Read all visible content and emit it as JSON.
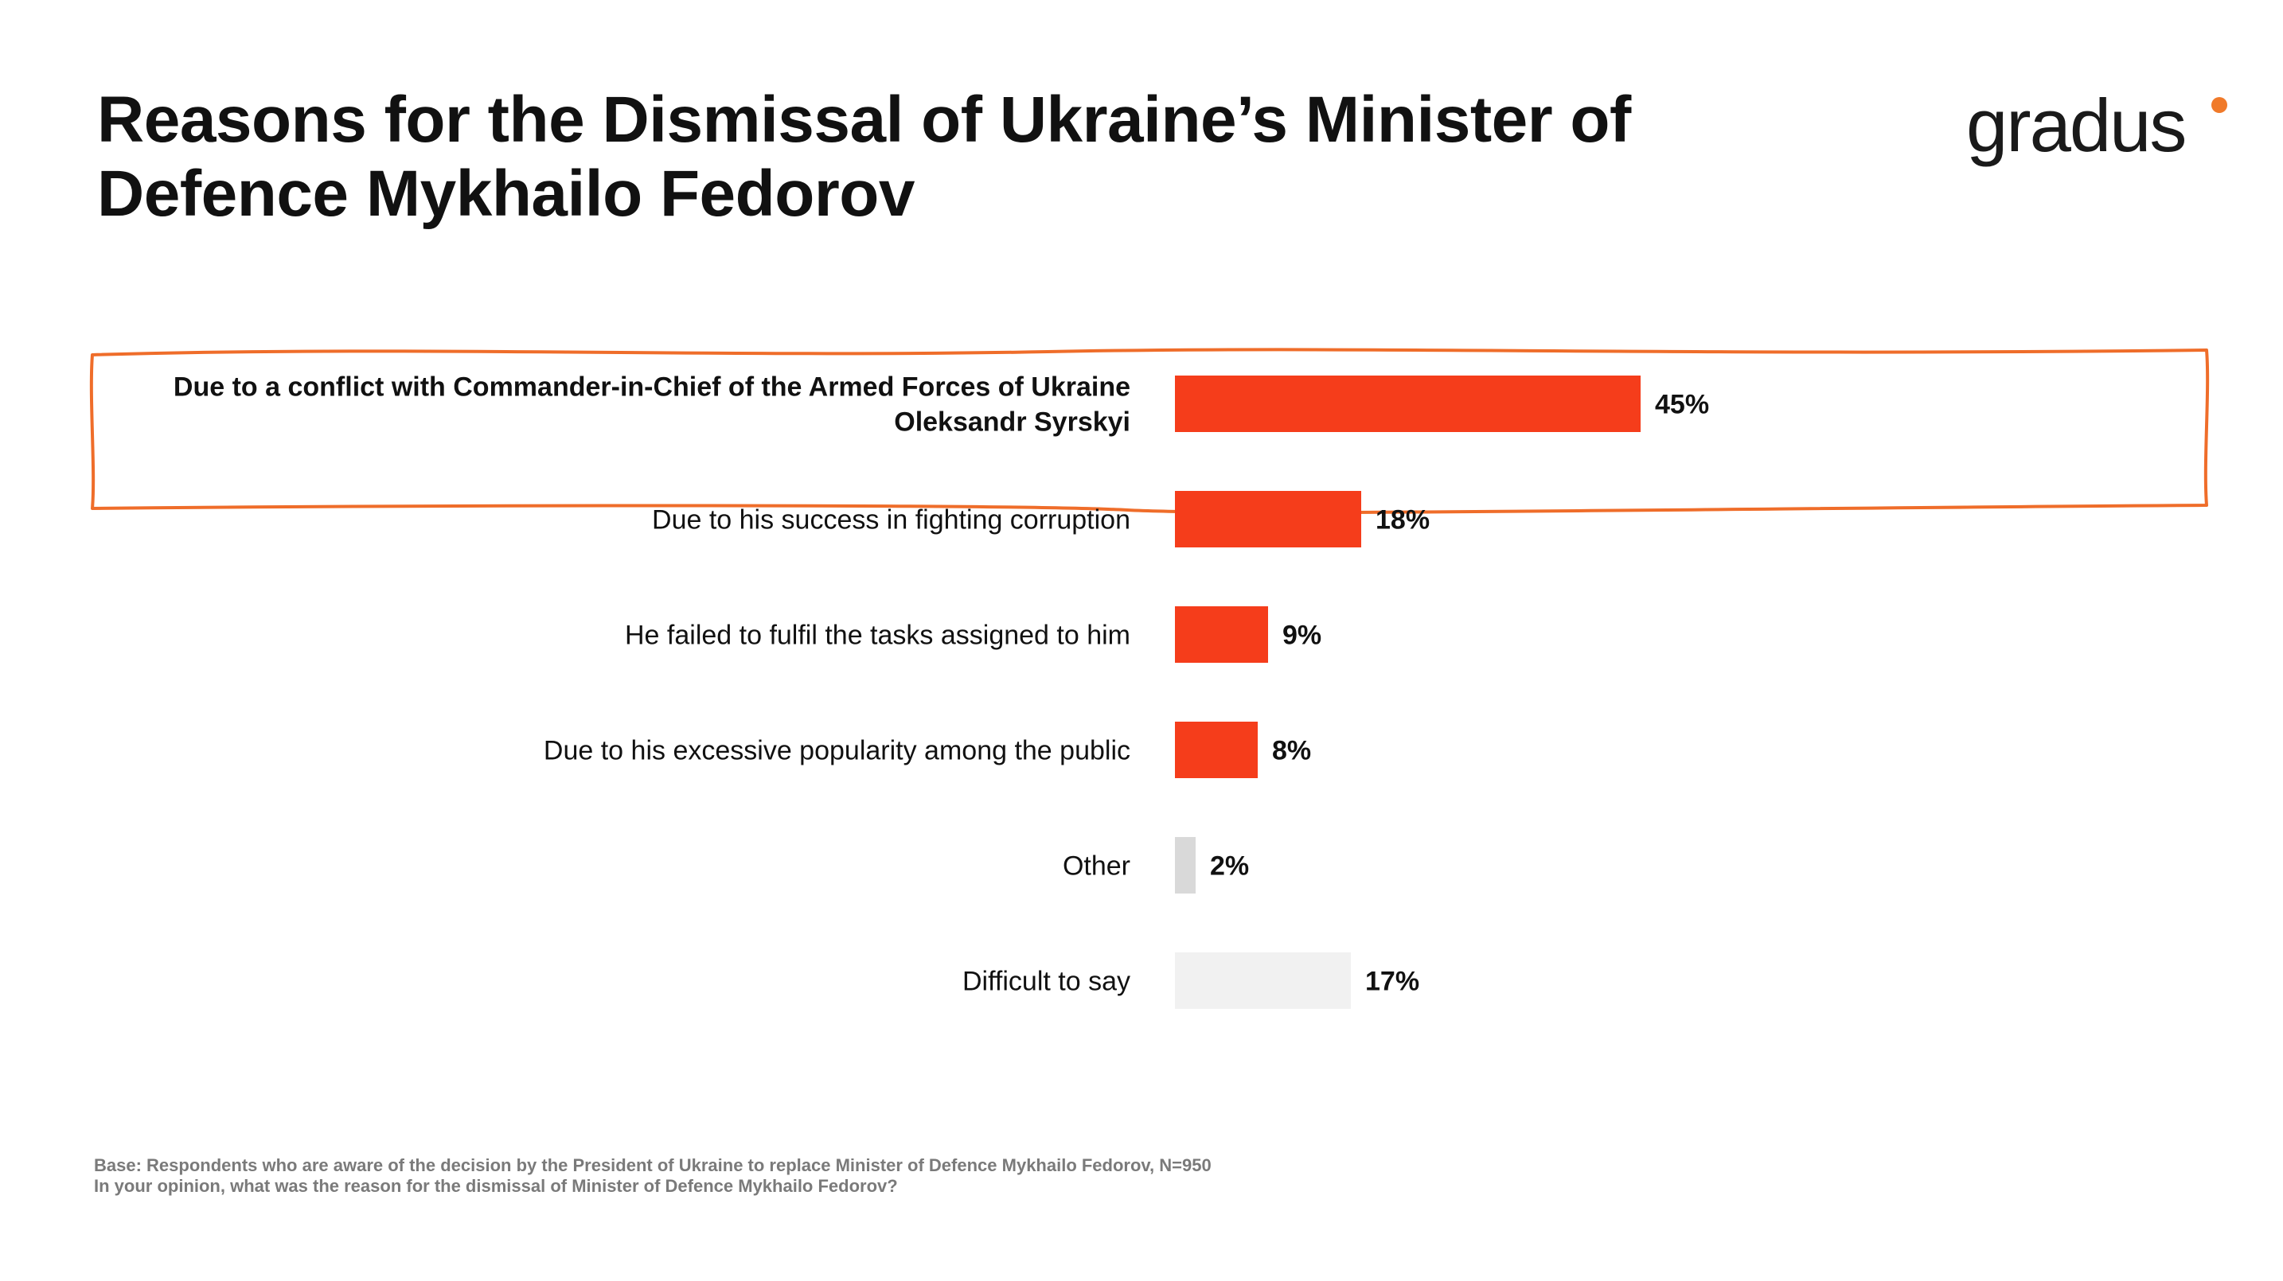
{
  "slide": {
    "title": "Reasons for the Dismissal of Ukraine’s Minister of Defence Mykhailo Fedorov",
    "logo_text": "gradus",
    "footnote_base": "Base: Respondents who are aware of the decision by the President of Ukraine to replace Minister of Defence Mykhailo Fedorov, N=950",
    "footnote_question": "In your opinion, what was the reason for the dismissal of Minister of Defence Mykhailo Fedorov?"
  },
  "colors": {
    "accent": "#f53d1b",
    "logo_dot": "#f07a2a",
    "highlight_box": "#ef6d2a",
    "other": "#d9d9d9",
    "difficult": "#f1f1f1"
  },
  "chart_data": {
    "type": "bar",
    "orientation": "horizontal",
    "title": "Reasons for the Dismissal of Ukraine’s Minister of Defence Mykhailo Fedorov",
    "categories": [
      [
        "Due to a conflict with Commander-in-Chief of the Armed Forces of Ukraine",
        "Oleksandr Syrskyi"
      ],
      [
        "Due to his success in fighting corruption"
      ],
      [
        "He failed to fulfil the tasks assigned to him"
      ],
      [
        "Due to his excessive popularity among the public"
      ],
      [
        "Other"
      ],
      [
        "Difficult to say"
      ]
    ],
    "values": [
      45,
      18,
      9,
      8,
      2,
      17
    ],
    "value_labels": [
      "45%",
      "18%",
      "9%",
      "8%",
      "2%",
      "17%"
    ],
    "unit": "%",
    "bar_colors": [
      "#f53d1b",
      "#f53d1b",
      "#f53d1b",
      "#f53d1b",
      "#d9d9d9",
      "#f1f1f1"
    ],
    "highlighted_index": 0,
    "xlim": [
      0,
      100
    ],
    "grid": false,
    "legend": "none"
  }
}
